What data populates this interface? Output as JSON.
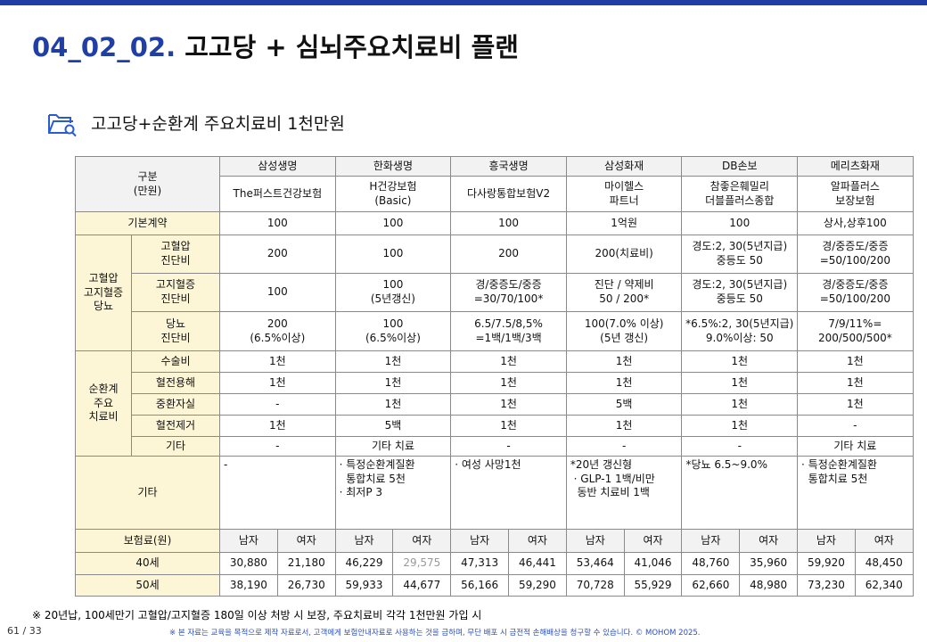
{
  "header": {
    "title_num": "04_02_02.",
    "title_rest": "고고당 + 심뇌주요치료비 플랜",
    "subtitle": "고고당+순환계 주요치료비 1천만원"
  },
  "table": {
    "corner": "구분\n(만원)",
    "companies": [
      "삼성생명",
      "한화생명",
      "흥국생명",
      "삼성화재",
      "DB손보",
      "메리츠화재"
    ],
    "products": [
      "The퍼스트건강보험",
      "H건강보험\n(Basic)",
      "다사랑통합보험V2",
      "마이헬스\n파트너",
      "참좋은훼밀리\n더블플러스종합",
      "알파플러스\n보장보험"
    ],
    "basic": {
      "label": "기본계약",
      "values": [
        "100",
        "100",
        "100",
        "1억원",
        "100",
        "상사,상후100"
      ]
    },
    "groups": [
      {
        "label": "고혈압\n고지혈증\n당뇨",
        "rows": [
          {
            "label": "고혈압\n진단비",
            "values": [
              "200",
              "100",
              "200",
              "200(치료비)",
              "경도:2, 30(5년지급)\n중등도 50",
              "경/중증도/중증\n=50/100/200"
            ]
          },
          {
            "label": "고지혈증\n진단비",
            "values": [
              "100",
              "100\n(5년갱신)",
              "경/중증도/중증\n=30/70/100*",
              "진단 / 약제비\n50 / 200*",
              "경도:2, 30(5년지급)\n중등도 50",
              "경/중증도/중증\n=50/100/200"
            ]
          },
          {
            "label": "당뇨\n진단비",
            "values": [
              "200\n(6.5%이상)",
              "100\n(6.5%이상)",
              "6.5/7.5/8,5%\n=1백/1백/3백",
              "100(7.0% 이상)\n(5년 갱신)",
              "*6.5%:2, 30(5년지급)\n9.0%이상: 50",
              "7/9/11%=\n200/500/500*"
            ]
          }
        ]
      },
      {
        "label": "순환계\n주요\n치료비",
        "rows": [
          {
            "label": "수술비",
            "values": [
              "1천",
              "1천",
              "1천",
              "1천",
              "1천",
              "1천"
            ]
          },
          {
            "label": "혈전용해",
            "values": [
              "1천",
              "1천",
              "1천",
              "1천",
              "1천",
              "1천"
            ]
          },
          {
            "label": "중환자실",
            "values": [
              "-",
              "1천",
              "1천",
              "5백",
              "1천",
              "1천"
            ]
          },
          {
            "label": "혈전제거",
            "values": [
              "1천",
              "5백",
              "1천",
              "1천",
              "1천",
              "-"
            ]
          },
          {
            "label": "기타",
            "values": [
              "-",
              "기타 치료",
              "-",
              "-",
              "-",
              "기타 치료"
            ]
          }
        ]
      }
    ],
    "etc": {
      "label": "기타",
      "values": [
        "-",
        "· 특정순환계질환\n  통합치료 5천\n· 최저P 3",
        "· 여성 사망1천",
        "*20년 갱신형\n · GLP-1 1백/비만\n  동반 치료비 1백",
        "*당뇨 6.5~9.0%",
        "· 특정순환계질환\n  통합치료 5천"
      ]
    },
    "premium": {
      "label": "보험료(원)",
      "sexes": [
        "남자",
        "여자"
      ],
      "rows": [
        {
          "label": "40세",
          "values": [
            "30,880",
            "21,180",
            "46,229",
            "29,575",
            "47,313",
            "46,441",
            "53,464",
            "41,046",
            "48,760",
            "35,960",
            "59,920",
            "48,450"
          ]
        },
        {
          "label": "50세",
          "values": [
            "38,190",
            "26,730",
            "59,933",
            "44,677",
            "56,166",
            "59,290",
            "70,728",
            "55,929",
            "62,660",
            "48,980",
            "73,230",
            "62,340"
          ]
        }
      ]
    }
  },
  "footer": {
    "note": "※ 20년납, 100세만기 고혈압/고지혈증 180일 이상 처방 시 보장, 주요치료비 각각 1천만원 가입 시",
    "page": "61 / 33",
    "disclaimer": "※ 본 자료는 교육을 목적으로 제작 자료로서, 고객에게 보험안내자료로 사용하는 것을 금하며, 무단 배포 시 금전적 손해배상을 청구할 수 있습니다. © MOHOM 2025."
  }
}
